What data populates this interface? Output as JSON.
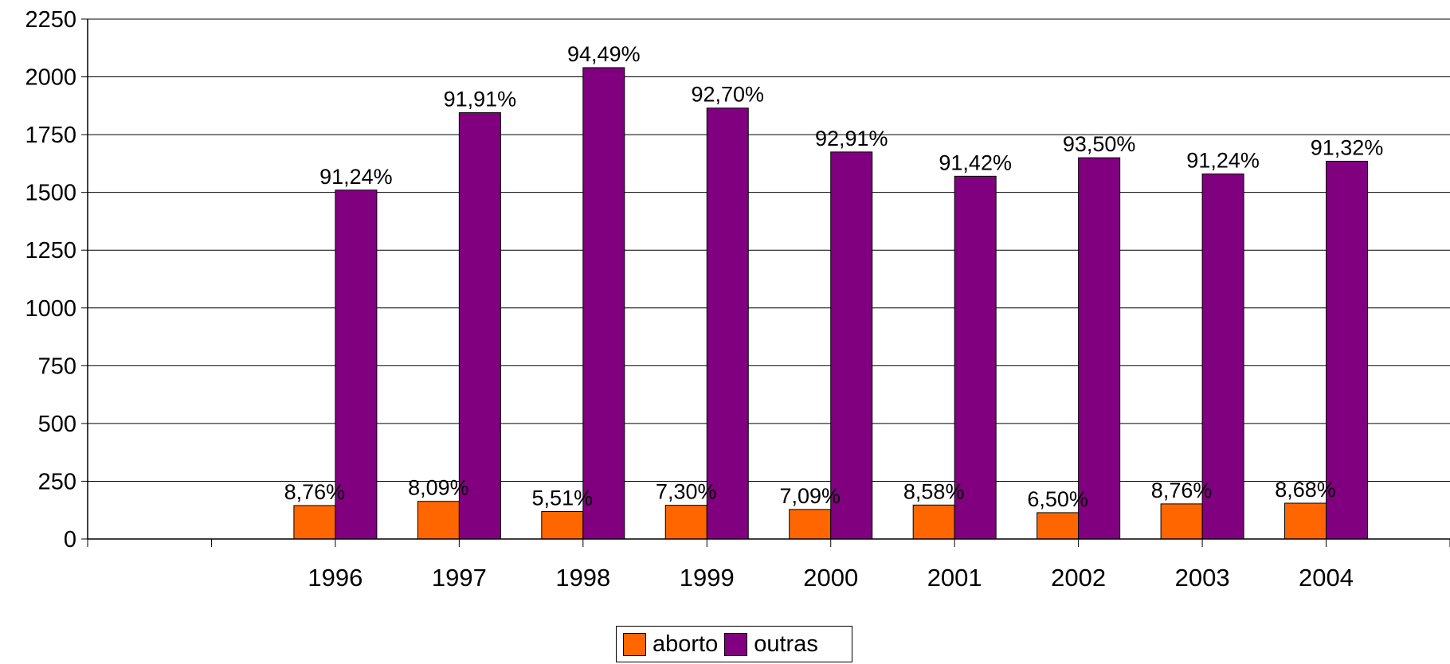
{
  "chart_data": {
    "type": "bar",
    "categories": [
      "1996",
      "1997",
      "1998",
      "1999",
      "2000",
      "2001",
      "2002",
      "2003",
      "2004"
    ],
    "series": [
      {
        "name": "aborto",
        "color": "#FF6600",
        "values": [
          145,
          163,
          119,
          146,
          128,
          147,
          114,
          152,
          155
        ],
        "labels": [
          "8,76%",
          "8,09%",
          "5,51%",
          "7,30%",
          "7,09%",
          "8,58%",
          "6,50%",
          "8,76%",
          "8,68%"
        ]
      },
      {
        "name": "outras",
        "color": "#800080",
        "values": [
          1510,
          1845,
          2040,
          1865,
          1675,
          1570,
          1650,
          1580,
          1635
        ],
        "labels": [
          "91,24%",
          "91,91%",
          "94,49%",
          "92,70%",
          "92,91%",
          "91,42%",
          "93,50%",
          "91,24%",
          "91,32%"
        ]
      }
    ],
    "slots": 11,
    "ylim": [
      0,
      2250
    ],
    "yticks": [
      "0",
      "250",
      "500",
      "750",
      "1000",
      "1250",
      "1500",
      "1750",
      "2000",
      "2250"
    ],
    "title": "",
    "xlabel": "",
    "ylabel": "",
    "grid": true,
    "legend": "bottom"
  }
}
